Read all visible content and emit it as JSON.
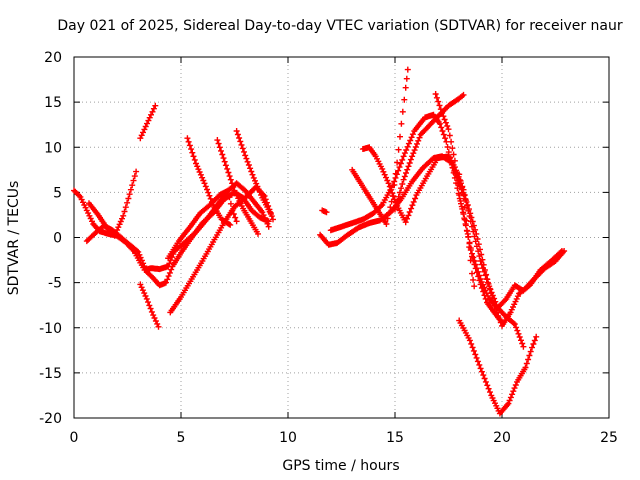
{
  "chart_data": {
    "type": "scatter",
    "title": "Day 021 of 2025, Sidereal Day-to-day VTEC variation (SDTVAR) for receiver naur",
    "xlabel": "GPS time / hours",
    "ylabel": "SDTVAR / TECUs",
    "xlim": [
      0,
      25
    ],
    "ylim": [
      -20,
      20
    ],
    "xticks": [
      0,
      5,
      10,
      15,
      20,
      25
    ],
    "yticks": [
      -20,
      -15,
      -10,
      -5,
      0,
      5,
      10,
      15,
      20
    ],
    "grid": true,
    "marker": "+",
    "color": "#ff0000",
    "series": [
      {
        "values": [
          [
            0.0,
            5.2
          ],
          [
            0.3,
            4.5
          ],
          [
            0.6,
            3.0
          ],
          [
            0.9,
            1.5
          ],
          [
            1.2,
            0.7
          ],
          [
            1.6,
            0.4
          ],
          [
            2.0,
            0.2
          ],
          [
            2.4,
            -0.5
          ],
          [
            2.8,
            -1.5
          ],
          [
            3.1,
            -2.8
          ],
          [
            3.3,
            -3.6
          ],
          [
            3.6,
            -3.4
          ],
          [
            4.0,
            -3.5
          ],
          [
            4.4,
            -3.2
          ],
          [
            4.7,
            -1.5
          ],
          [
            5.2,
            -0.5
          ],
          [
            5.7,
            0.6
          ],
          [
            6.2,
            2.0
          ],
          [
            6.7,
            3.6
          ],
          [
            7.2,
            5.2
          ],
          [
            7.6,
            6.0
          ],
          [
            8.0,
            5.2
          ],
          [
            8.4,
            4.0
          ],
          [
            8.8,
            2.8
          ],
          [
            9.1,
            1.2
          ]
        ]
      },
      {
        "values": [
          [
            0.6,
            -0.4
          ],
          [
            1.0,
            0.5
          ],
          [
            1.4,
            1.3
          ],
          [
            1.8,
            0.8
          ],
          [
            2.2,
            0.0
          ],
          [
            2.6,
            -0.8
          ],
          [
            3.0,
            -1.6
          ],
          [
            3.4,
            -3.8
          ],
          [
            3.7,
            -4.5
          ],
          [
            4.0,
            -5.3
          ],
          [
            4.3,
            -5.0
          ],
          [
            4.6,
            -3.2
          ],
          [
            5.0,
            -1.7
          ],
          [
            5.5,
            0.0
          ],
          [
            6.0,
            1.6
          ],
          [
            6.5,
            2.7
          ],
          [
            7.0,
            4.2
          ],
          [
            7.5,
            5.0
          ],
          [
            7.9,
            4.4
          ],
          [
            8.3,
            3.0
          ],
          [
            8.7,
            2.2
          ],
          [
            9.1,
            1.8
          ]
        ]
      },
      {
        "values": [
          [
            0.7,
            3.8
          ],
          [
            1.1,
            2.6
          ],
          [
            1.5,
            1.2
          ],
          [
            1.9,
            0.2
          ],
          [
            2.3,
            2.4
          ],
          [
            2.6,
            4.8
          ],
          [
            2.9,
            7.3
          ]
        ]
      },
      {
        "values": [
          [
            3.1,
            11.0
          ],
          [
            3.35,
            12.3
          ],
          [
            3.6,
            13.6
          ],
          [
            3.8,
            14.6
          ]
        ]
      },
      {
        "values": [
          [
            3.1,
            -5.2
          ],
          [
            3.4,
            -6.8
          ],
          [
            3.7,
            -8.6
          ],
          [
            3.95,
            -9.9
          ]
        ]
      },
      {
        "values": [
          [
            4.5,
            -8.3
          ],
          [
            5.0,
            -6.6
          ],
          [
            5.5,
            -4.6
          ],
          [
            6.0,
            -2.6
          ],
          [
            6.5,
            -0.5
          ],
          [
            7.0,
            1.6
          ],
          [
            7.5,
            3.4
          ],
          [
            8.0,
            4.4
          ],
          [
            8.5,
            5.6
          ],
          [
            8.9,
            4.6
          ],
          [
            9.3,
            2.0
          ]
        ]
      },
      {
        "values": [
          [
            4.4,
            -2.3
          ],
          [
            4.9,
            -0.4
          ],
          [
            5.4,
            1.1
          ],
          [
            5.9,
            2.7
          ],
          [
            6.4,
            3.7
          ],
          [
            6.8,
            4.7
          ],
          [
            7.2,
            5.2
          ],
          [
            7.4,
            3.0
          ],
          [
            7.6,
            1.8
          ]
        ]
      },
      {
        "values": [
          [
            5.3,
            11.0
          ],
          [
            5.7,
            8.2
          ],
          [
            6.1,
            6.0
          ],
          [
            6.5,
            3.6
          ],
          [
            6.9,
            2.0
          ],
          [
            7.3,
            1.4
          ]
        ]
      },
      {
        "values": [
          [
            6.7,
            10.8
          ],
          [
            7.1,
            8.0
          ],
          [
            7.5,
            5.2
          ],
          [
            7.9,
            3.2
          ],
          [
            8.3,
            1.6
          ],
          [
            8.6,
            0.4
          ]
        ]
      },
      {
        "values": [
          [
            7.6,
            11.8
          ],
          [
            8.0,
            9.1
          ],
          [
            8.4,
            6.6
          ],
          [
            8.8,
            4.4
          ],
          [
            9.2,
            2.6
          ]
        ]
      },
      {
        "values": [
          [
            11.6,
            3.0
          ],
          [
            11.8,
            2.8
          ]
        ]
      },
      {
        "values": [
          [
            11.5,
            0.3
          ],
          [
            11.9,
            -0.8
          ],
          [
            12.3,
            -0.6
          ],
          [
            12.8,
            0.3
          ],
          [
            13.3,
            1.1
          ],
          [
            13.8,
            1.6
          ],
          [
            14.3,
            1.9
          ],
          [
            14.8,
            2.8
          ],
          [
            15.3,
            4.3
          ],
          [
            15.8,
            6.2
          ],
          [
            16.3,
            7.7
          ],
          [
            16.8,
            8.8
          ],
          [
            17.2,
            9.0
          ],
          [
            17.6,
            8.4
          ],
          [
            18.0,
            6.0
          ],
          [
            18.4,
            3.6
          ],
          [
            18.8,
            0.4
          ],
          [
            19.2,
            -3.6
          ],
          [
            19.6,
            -7.2
          ],
          [
            20.0,
            -9.8
          ],
          [
            20.4,
            -8.3
          ],
          [
            20.8,
            -6.2
          ],
          [
            21.3,
            -5.3
          ],
          [
            21.8,
            -3.6
          ],
          [
            22.3,
            -2.6
          ],
          [
            22.8,
            -1.5
          ]
        ]
      },
      {
        "values": [
          [
            12.0,
            0.8
          ],
          [
            12.5,
            1.2
          ],
          [
            13.0,
            1.6
          ],
          [
            13.5,
            2.0
          ],
          [
            14.0,
            2.7
          ],
          [
            14.4,
            3.6
          ],
          [
            14.9,
            5.8
          ],
          [
            15.4,
            9.0
          ],
          [
            15.9,
            11.8
          ],
          [
            16.4,
            13.3
          ],
          [
            16.8,
            13.6
          ],
          [
            17.1,
            12.6
          ],
          [
            17.4,
            10.6
          ],
          [
            17.8,
            6.6
          ],
          [
            18.2,
            2.6
          ],
          [
            18.6,
            -1.8
          ],
          [
            19.0,
            -4.6
          ],
          [
            19.4,
            -6.8
          ],
          [
            19.8,
            -7.8
          ],
          [
            20.2,
            -6.8
          ],
          [
            20.6,
            -5.3
          ],
          [
            21.0,
            -5.9
          ],
          [
            21.5,
            -4.6
          ],
          [
            22.0,
            -3.4
          ],
          [
            22.5,
            -2.6
          ],
          [
            22.9,
            -1.5
          ]
        ]
      },
      {
        "values": [
          [
            13.0,
            7.5
          ],
          [
            13.4,
            6.0
          ],
          [
            13.8,
            4.5
          ],
          [
            14.2,
            3.0
          ],
          [
            14.6,
            1.5
          ],
          [
            14.9,
            4.6
          ],
          [
            15.1,
            8.3
          ],
          [
            15.3,
            12.6
          ],
          [
            15.5,
            16.6
          ],
          [
            15.6,
            18.6
          ]
        ]
      },
      {
        "values": [
          [
            13.5,
            9.8
          ],
          [
            13.8,
            10.0
          ],
          [
            14.1,
            9.0
          ],
          [
            14.4,
            7.6
          ],
          [
            14.7,
            6.0
          ],
          [
            15.1,
            3.5
          ],
          [
            15.5,
            1.7
          ],
          [
            16.0,
            4.7
          ],
          [
            16.5,
            6.8
          ],
          [
            17.0,
            8.8
          ],
          [
            17.5,
            9.0
          ],
          [
            17.8,
            7.8
          ],
          [
            18.2,
            5.3
          ],
          [
            18.6,
            1.2
          ],
          [
            19.0,
            -2.6
          ],
          [
            19.4,
            -5.4
          ],
          [
            19.8,
            -7.8
          ],
          [
            20.2,
            -8.8
          ],
          [
            20.6,
            -9.6
          ],
          [
            21.0,
            -12.1
          ]
        ]
      },
      {
        "values": [
          [
            15.0,
            3.1
          ],
          [
            15.4,
            6.4
          ],
          [
            15.8,
            9.0
          ],
          [
            16.2,
            11.4
          ],
          [
            16.6,
            12.4
          ],
          [
            17.0,
            13.4
          ],
          [
            17.5,
            14.6
          ],
          [
            18.0,
            15.4
          ],
          [
            18.2,
            15.8
          ]
        ]
      },
      {
        "values": [
          [
            16.9,
            15.9
          ],
          [
            17.2,
            13.8
          ],
          [
            17.5,
            12.0
          ],
          [
            17.8,
            8.5
          ],
          [
            18.0,
            4.7
          ],
          [
            18.3,
            1.5
          ],
          [
            18.6,
            -2.1
          ],
          [
            19.0,
            -5.2
          ],
          [
            19.3,
            -7.2
          ],
          [
            19.7,
            -8.5
          ],
          [
            20.0,
            -9.4
          ]
        ]
      },
      {
        "values": [
          [
            18.0,
            7.0
          ],
          [
            18.2,
            4.8
          ],
          [
            18.4,
            0.4
          ],
          [
            18.6,
            -4.0
          ],
          [
            18.7,
            -5.4
          ]
        ]
      },
      {
        "values": [
          [
            18.0,
            -9.2
          ],
          [
            18.5,
            -11.4
          ],
          [
            19.0,
            -14.5
          ],
          [
            19.5,
            -17.5
          ],
          [
            19.9,
            -19.5
          ],
          [
            20.3,
            -18.4
          ],
          [
            20.7,
            -16.0
          ],
          [
            21.1,
            -14.4
          ],
          [
            21.4,
            -12.2
          ],
          [
            21.6,
            -11.0
          ]
        ]
      }
    ]
  }
}
